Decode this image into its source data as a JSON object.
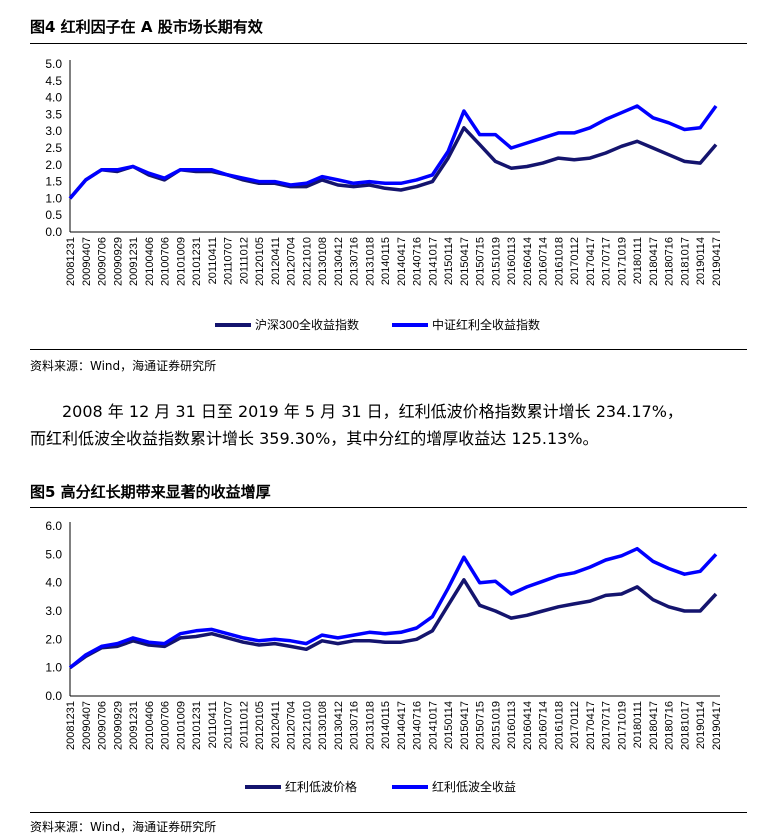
{
  "figure4": {
    "title": "图4 红利因子在 A 股市场长期有效",
    "source": "资料来源：Wind，海通证券研究所"
  },
  "paragraph": {
    "line1": "2008 年 12 月 31 日至 2019 年 5 月 31 日，红利低波价格指数累计增长 234.17%，",
    "line2": "而红利低波全收益指数累计增长 359.30%，其中分红的增厚收益达 125.13%。"
  },
  "figure5": {
    "title": "图5 高分红长期带来显著的收益增厚",
    "source": "资料来源：Wind，海通证券研究所"
  },
  "chart_data": [
    {
      "type": "line",
      "x": [
        "20081231",
        "20090407",
        "20090706",
        "20090929",
        "20091231",
        "20100406",
        "20100706",
        "20101009",
        "20101231",
        "20110411",
        "20110707",
        "20111012",
        "20120105",
        "20120411",
        "20120704",
        "20121010",
        "20130108",
        "20130412",
        "20130716",
        "20131018",
        "20140115",
        "20140417",
        "20140716",
        "20141017",
        "20150114",
        "20150417",
        "20150715",
        "20151019",
        "20160113",
        "20160414",
        "20160714",
        "20161018",
        "20170112",
        "20170417",
        "20170717",
        "20171019",
        "20180111",
        "20180417",
        "20180716",
        "20181017",
        "20190114",
        "20190417"
      ],
      "series": [
        {
          "name": "沪深300全收益指数",
          "color": "#14146e",
          "values": [
            1.0,
            1.55,
            1.85,
            1.8,
            1.95,
            1.7,
            1.55,
            1.85,
            1.8,
            1.8,
            1.7,
            1.55,
            1.45,
            1.45,
            1.35,
            1.35,
            1.55,
            1.4,
            1.35,
            1.4,
            1.3,
            1.25,
            1.35,
            1.5,
            2.2,
            3.1,
            2.6,
            2.1,
            1.9,
            1.95,
            2.05,
            2.2,
            2.15,
            2.2,
            2.35,
            2.55,
            2.7,
            2.5,
            2.3,
            2.1,
            2.05,
            2.6
          ]
        },
        {
          "name": "中证红利全收益指数",
          "color": "#0000ff",
          "values": [
            1.0,
            1.55,
            1.85,
            1.85,
            1.95,
            1.75,
            1.6,
            1.85,
            1.85,
            1.85,
            1.7,
            1.6,
            1.5,
            1.5,
            1.4,
            1.45,
            1.65,
            1.55,
            1.45,
            1.5,
            1.45,
            1.45,
            1.55,
            1.7,
            2.4,
            3.6,
            2.9,
            2.9,
            2.5,
            2.65,
            2.8,
            2.95,
            2.95,
            3.1,
            3.35,
            3.55,
            3.75,
            3.4,
            3.25,
            3.05,
            3.1,
            3.75
          ]
        }
      ],
      "ylim": [
        0,
        5
      ],
      "yticks": [
        "0.0",
        "0.5",
        "1.0",
        "1.5",
        "2.0",
        "2.5",
        "3.0",
        "3.5",
        "4.0",
        "4.5",
        "5.0"
      ],
      "legend": "bottom"
    },
    {
      "type": "line",
      "x": [
        "20081231",
        "20090407",
        "20090706",
        "20090929",
        "20091231",
        "20100406",
        "20100706",
        "20101009",
        "20101231",
        "20110411",
        "20110707",
        "20111012",
        "20120105",
        "20120411",
        "20120704",
        "20121010",
        "20130108",
        "20130412",
        "20130716",
        "20131018",
        "20140115",
        "20140417",
        "20140716",
        "20141017",
        "20150114",
        "20150417",
        "20150715",
        "20151019",
        "20160113",
        "20160414",
        "20160714",
        "20161018",
        "20170112",
        "20170417",
        "20170717",
        "20171019",
        "20180111",
        "20180417",
        "20180716",
        "20181017",
        "20190114",
        "20190417"
      ],
      "series": [
        {
          "name": "红利低波价格",
          "color": "#14146e",
          "values": [
            1.0,
            1.4,
            1.7,
            1.75,
            1.95,
            1.8,
            1.75,
            2.05,
            2.1,
            2.2,
            2.05,
            1.9,
            1.8,
            1.85,
            1.75,
            1.65,
            1.95,
            1.85,
            1.95,
            1.95,
            1.9,
            1.9,
            2.0,
            2.3,
            3.2,
            4.1,
            3.2,
            3.0,
            2.75,
            2.85,
            3.0,
            3.15,
            3.25,
            3.35,
            3.55,
            3.6,
            3.85,
            3.4,
            3.15,
            3.0,
            3.0,
            3.6
          ]
        },
        {
          "name": "红利低波全收益",
          "color": "#0000ff",
          "values": [
            1.0,
            1.45,
            1.75,
            1.85,
            2.05,
            1.9,
            1.85,
            2.2,
            2.3,
            2.35,
            2.2,
            2.05,
            1.95,
            2.0,
            1.95,
            1.85,
            2.15,
            2.05,
            2.15,
            2.25,
            2.2,
            2.25,
            2.4,
            2.8,
            3.8,
            4.9,
            4.0,
            4.05,
            3.6,
            3.85,
            4.05,
            4.25,
            4.35,
            4.55,
            4.8,
            4.95,
            5.2,
            4.75,
            4.5,
            4.3,
            4.4,
            5.0
          ]
        }
      ],
      "ylim": [
        0,
        6
      ],
      "yticks": [
        "0.0",
        "1.0",
        "2.0",
        "3.0",
        "4.0",
        "5.0",
        "6.0"
      ],
      "legend": "bottom"
    }
  ]
}
